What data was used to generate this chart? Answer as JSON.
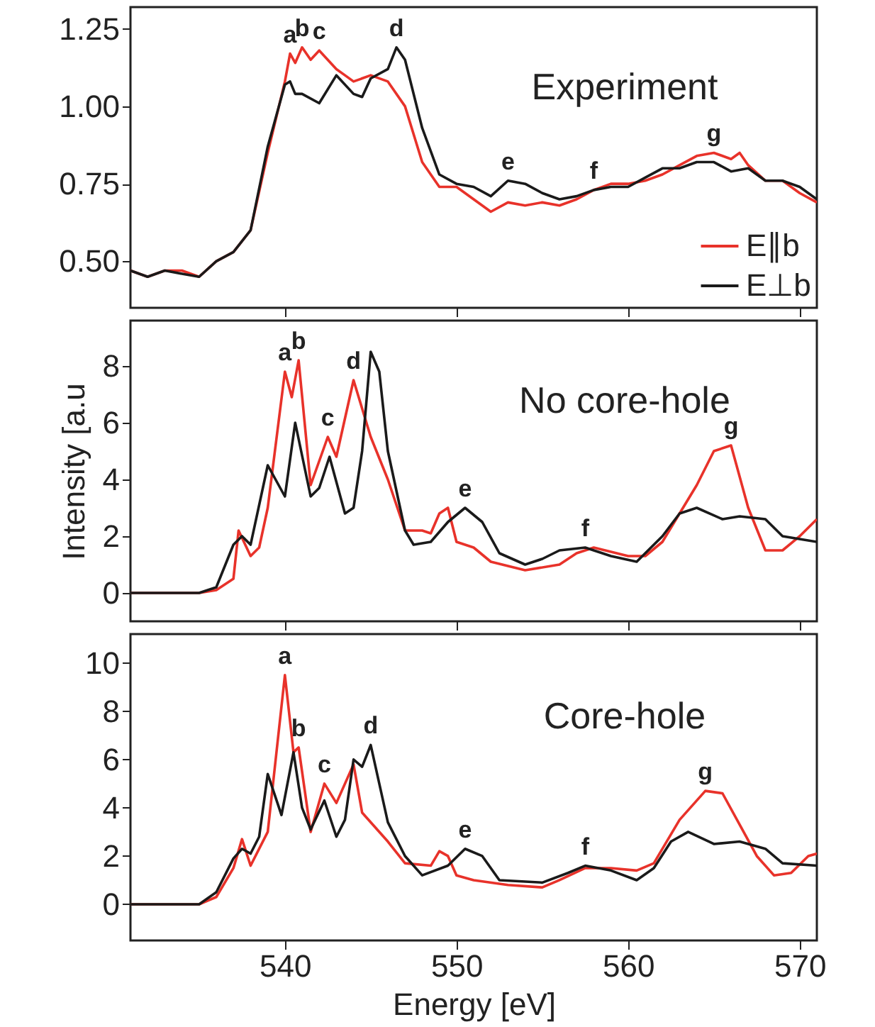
{
  "chart_data": [
    {
      "type": "line",
      "title": "Experiment",
      "xlim": [
        531,
        571
      ],
      "xticks": [
        540,
        550,
        560,
        570
      ],
      "ylim": [
        0.35,
        1.32
      ],
      "yticks": [
        {
          "value": 0.5,
          "label": "0.50"
        },
        0.75,
        {
          "value": 1.0,
          "label": "1.00"
        },
        1.25
      ],
      "tick_labels": "y",
      "legend": "bottom right",
      "grid": false,
      "series": [
        {
          "name": "E∥b",
          "color": "#e8322a",
          "x": [
            531,
            532,
            533,
            534,
            535,
            536,
            537,
            538,
            539,
            540,
            540.3,
            540.6,
            541,
            541.5,
            542,
            543,
            543.5,
            544,
            545,
            546,
            547,
            548,
            549,
            550,
            551,
            552,
            553,
            554,
            555,
            556,
            557,
            558,
            559,
            560,
            561,
            562,
            563,
            564,
            565,
            566,
            566.5,
            567,
            568,
            569,
            570,
            571
          ],
          "values": [
            0.47,
            0.45,
            0.47,
            0.47,
            0.45,
            0.5,
            0.53,
            0.6,
            0.85,
            1.08,
            1.17,
            1.14,
            1.19,
            1.15,
            1.18,
            1.12,
            1.1,
            1.08,
            1.1,
            1.08,
            1.0,
            0.82,
            0.74,
            0.74,
            0.7,
            0.66,
            0.69,
            0.68,
            0.69,
            0.68,
            0.7,
            0.73,
            0.75,
            0.75,
            0.76,
            0.78,
            0.81,
            0.84,
            0.85,
            0.83,
            0.85,
            0.81,
            0.76,
            0.76,
            0.72,
            0.69
          ]
        },
        {
          "name": "E⊥b",
          "color": "#1a1a1a",
          "x": [
            531,
            532,
            533,
            534,
            535,
            536,
            537,
            538,
            539,
            540,
            540.3,
            540.6,
            541,
            542,
            543,
            544,
            544.5,
            545,
            546,
            546.5,
            547,
            548,
            549,
            550,
            551,
            552,
            553,
            554,
            555,
            556,
            557,
            558,
            559,
            560,
            561,
            562,
            563,
            564,
            565,
            566,
            567,
            568,
            569,
            570,
            571
          ],
          "values": [
            0.47,
            0.45,
            0.47,
            0.46,
            0.45,
            0.5,
            0.53,
            0.6,
            0.87,
            1.07,
            1.08,
            1.04,
            1.04,
            1.01,
            1.1,
            1.04,
            1.03,
            1.09,
            1.12,
            1.19,
            1.15,
            0.93,
            0.78,
            0.75,
            0.74,
            0.71,
            0.76,
            0.75,
            0.72,
            0.7,
            0.71,
            0.73,
            0.74,
            0.74,
            0.77,
            0.8,
            0.8,
            0.82,
            0.82,
            0.79,
            0.8,
            0.76,
            0.76,
            0.74,
            0.7
          ]
        }
      ],
      "annotations": [
        {
          "text": "a",
          "x": 540.3,
          "y": 1.17
        },
        {
          "text": "b",
          "x": 541,
          "y": 1.19
        },
        {
          "text": "c",
          "x": 542,
          "y": 1.18
        },
        {
          "text": "d",
          "x": 546.5,
          "y": 1.19
        },
        {
          "text": "e",
          "x": 553,
          "y": 0.76
        },
        {
          "text": "f",
          "x": 558,
          "y": 0.73
        },
        {
          "text": "g",
          "x": 565,
          "y": 0.85
        }
      ]
    },
    {
      "type": "line",
      "title": "No core-hole",
      "ylabel": "Intensity [a.u",
      "xlim": [
        531,
        571
      ],
      "xticks": [
        540,
        550,
        560,
        570
      ],
      "ylim": [
        -1,
        9.6
      ],
      "yticks": [
        0,
        2,
        4,
        6,
        8
      ],
      "tick_labels": "y",
      "grid": false,
      "series": [
        {
          "color": "#e8322a",
          "x": [
            531,
            535,
            536,
            537,
            537.3,
            538,
            538.5,
            539,
            540,
            540.4,
            540.8,
            541.5,
            542.5,
            543,
            544,
            545,
            546,
            547,
            548,
            548.5,
            549,
            549.5,
            550,
            551,
            552,
            554,
            556,
            557,
            558,
            560,
            561,
            562,
            564,
            565,
            566,
            567,
            568,
            569,
            570,
            571
          ],
          "values": [
            0,
            0,
            0.1,
            0.5,
            2.2,
            1.3,
            1.6,
            3,
            7.8,
            6.9,
            8.2,
            3.8,
            5.5,
            4.8,
            7.5,
            5.5,
            4,
            2.2,
            2.2,
            2.1,
            2.8,
            3.0,
            1.8,
            1.6,
            1.1,
            0.8,
            1.0,
            1.4,
            1.6,
            1.3,
            1.3,
            1.8,
            3.8,
            5.0,
            5.2,
            3,
            1.5,
            1.5,
            2,
            2.6
          ]
        },
        {
          "color": "#1a1a1a",
          "x": [
            531,
            535,
            536,
            537,
            537.5,
            538,
            539,
            540,
            540.6,
            541.5,
            542,
            542.6,
            543.5,
            544,
            544.5,
            545,
            545.5,
            546,
            547,
            547.5,
            548.5,
            549.5,
            550.5,
            551.5,
            552.5,
            554,
            555,
            556,
            557.5,
            559,
            560.5,
            562,
            563,
            564,
            565.5,
            566.5,
            568,
            569,
            571
          ],
          "values": [
            0,
            0,
            0.2,
            1.7,
            2,
            1.7,
            4.5,
            3.4,
            6,
            3.4,
            3.7,
            4.8,
            2.8,
            3,
            5,
            8.5,
            7.8,
            5,
            2.2,
            1.7,
            1.8,
            2.5,
            3,
            2.5,
            1.4,
            1.0,
            1.2,
            1.5,
            1.6,
            1.3,
            1.1,
            2,
            2.8,
            3,
            2.6,
            2.7,
            2.6,
            2.0,
            1.8
          ]
        }
      ],
      "annotations": [
        {
          "text": "a",
          "x": 540,
          "y": 7.8
        },
        {
          "text": "b",
          "x": 540.8,
          "y": 8.2
        },
        {
          "text": "c",
          "x": 542.5,
          "y": 5.5
        },
        {
          "text": "d",
          "x": 544,
          "y": 7.5
        },
        {
          "text": "e",
          "x": 550.5,
          "y": 3
        },
        {
          "text": "f",
          "x": 557.5,
          "y": 1.6
        },
        {
          "text": "g",
          "x": 566,
          "y": 5.2
        }
      ]
    },
    {
      "type": "line",
      "title": "Core-hole",
      "xlabel": "Energy [eV]",
      "xlim": [
        531,
        571
      ],
      "xticks": [
        540,
        550,
        560,
        570
      ],
      "ylim": [
        -1.5,
        11.2
      ],
      "yticks": [
        0,
        2,
        4,
        6,
        8,
        10
      ],
      "grid": false,
      "series": [
        {
          "color": "#e8322a",
          "x": [
            531,
            535,
            536,
            537,
            537.5,
            538,
            539,
            540,
            540.5,
            540.8,
            541.5,
            542.3,
            543,
            544,
            544.5,
            546,
            547,
            548.5,
            549,
            549.5,
            550,
            551,
            553,
            555,
            556,
            557.5,
            559,
            560.5,
            561.5,
            563,
            564.5,
            565.5,
            566.5,
            567.5,
            568.5,
            569.5,
            570.5,
            571
          ],
          "values": [
            0,
            0,
            0.3,
            1.5,
            2.7,
            1.6,
            3,
            9.5,
            6.3,
            6.5,
            3.0,
            5,
            4.2,
            5.8,
            3.8,
            2.6,
            1.7,
            1.6,
            2.2,
            2.0,
            1.2,
            1,
            0.8,
            0.7,
            1.0,
            1.5,
            1.5,
            1.4,
            1.7,
            3.5,
            4.7,
            4.6,
            3.3,
            2,
            1.2,
            1.3,
            2,
            2.1
          ]
        },
        {
          "color": "#1a1a1a",
          "x": [
            531,
            535,
            536,
            537,
            537.5,
            538,
            538.5,
            539,
            539.8,
            540.5,
            541,
            541.5,
            542.3,
            543,
            543.5,
            544,
            544.5,
            545,
            546,
            547,
            548,
            549.5,
            550.5,
            551.5,
            552.5,
            555,
            556.5,
            557.5,
            559,
            560.5,
            561.5,
            562.5,
            563.5,
            565,
            566.5,
            568,
            569,
            571
          ],
          "values": [
            0,
            0,
            0.5,
            1.9,
            2.3,
            2.1,
            2.8,
            5.4,
            3.7,
            6.3,
            4,
            3.1,
            4.3,
            2.8,
            3.5,
            6,
            5.7,
            6.6,
            3.4,
            2,
            1.2,
            1.6,
            2.3,
            2.0,
            1,
            0.9,
            1.3,
            1.6,
            1.4,
            1.0,
            1.5,
            2.6,
            3.0,
            2.5,
            2.6,
            2.3,
            1.7,
            1.6
          ]
        }
      ],
      "annotations": [
        {
          "text": "a",
          "x": 540,
          "y": 9.5
        },
        {
          "text": "b",
          "x": 540.8,
          "y": 6.5
        },
        {
          "text": "c",
          "x": 542.3,
          "y": 5
        },
        {
          "text": "d",
          "x": 545,
          "y": 6.6
        },
        {
          "text": "e",
          "x": 550.5,
          "y": 2.3
        },
        {
          "text": "f",
          "x": 557.5,
          "y": 1.6
        },
        {
          "text": "g",
          "x": 564.5,
          "y": 4.7
        }
      ]
    }
  ]
}
